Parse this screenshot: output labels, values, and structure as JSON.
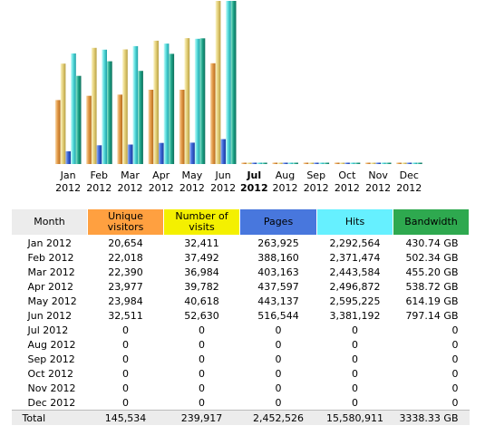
{
  "colors": {
    "unique_visitors": "#e8a254",
    "visits": "#e6d27c",
    "pages": "#3b66d8",
    "hits": "#56dcdc",
    "bandwidth": "#1fa58a"
  },
  "chart_data": {
    "type": "bar",
    "categories": [
      "Jan 2012",
      "Feb 2012",
      "Mar 2012",
      "Apr 2012",
      "May 2012",
      "Jun 2012",
      "Jul 2012",
      "Aug 2012",
      "Sep 2012",
      "Oct 2012",
      "Nov 2012",
      "Dec 2012"
    ],
    "current_month": "Jul 2012",
    "series": [
      {
        "name": "Unique visitors",
        "values": [
          20654,
          22018,
          22390,
          23977,
          23984,
          32511,
          0,
          0,
          0,
          0,
          0,
          0
        ]
      },
      {
        "name": "Number of visits",
        "values": [
          32411,
          37492,
          36984,
          39782,
          40618,
          52630,
          0,
          0,
          0,
          0,
          0,
          0
        ]
      },
      {
        "name": "Pages",
        "values": [
          263925,
          388160,
          403163,
          437597,
          443137,
          516544,
          0,
          0,
          0,
          0,
          0,
          0
        ]
      },
      {
        "name": "Hits",
        "values": [
          2292564,
          2371474,
          2443584,
          2496872,
          2595225,
          3381192,
          0,
          0,
          0,
          0,
          0,
          0
        ]
      },
      {
        "name": "Bandwidth",
        "values": [
          430.74,
          502.34,
          455.2,
          538.72,
          614.19,
          797.14,
          0,
          0,
          0,
          0,
          0,
          0
        ]
      }
    ],
    "scale_groups": [
      {
        "series": [
          "Unique visitors",
          "Number of visits"
        ],
        "max": 52630
      },
      {
        "series": [
          "Pages",
          "Hits"
        ],
        "max": 3381192
      },
      {
        "series": [
          "Bandwidth"
        ],
        "max": 797.14
      }
    ],
    "legend": "none",
    "grid": false
  },
  "month_labels": [
    {
      "m": "Jan",
      "y": "2012"
    },
    {
      "m": "Feb",
      "y": "2012"
    },
    {
      "m": "Mar",
      "y": "2012"
    },
    {
      "m": "Apr",
      "y": "2012"
    },
    {
      "m": "May",
      "y": "2012"
    },
    {
      "m": "Jun",
      "y": "2012"
    },
    {
      "m": "Jul",
      "y": "2012"
    },
    {
      "m": "Aug",
      "y": "2012"
    },
    {
      "m": "Sep",
      "y": "2012"
    },
    {
      "m": "Oct",
      "y": "2012"
    },
    {
      "m": "Nov",
      "y": "2012"
    },
    {
      "m": "Dec",
      "y": "2012"
    }
  ],
  "table": {
    "headers": {
      "month": "Month",
      "unique": "Unique visitors",
      "visits": "Number of visits",
      "pages": "Pages",
      "hits": "Hits",
      "bandwidth": "Bandwidth"
    },
    "rows": [
      [
        "Jan 2012",
        "20,654",
        "32,411",
        "263,925",
        "2,292,564",
        "430.74 GB"
      ],
      [
        "Feb 2012",
        "22,018",
        "37,492",
        "388,160",
        "2,371,474",
        "502.34 GB"
      ],
      [
        "Mar 2012",
        "22,390",
        "36,984",
        "403,163",
        "2,443,584",
        "455.20 GB"
      ],
      [
        "Apr 2012",
        "23,977",
        "39,782",
        "437,597",
        "2,496,872",
        "538.72 GB"
      ],
      [
        "May 2012",
        "23,984",
        "40,618",
        "443,137",
        "2,595,225",
        "614.19 GB"
      ],
      [
        "Jun 2012",
        "32,511",
        "52,630",
        "516,544",
        "3,381,192",
        "797.14 GB"
      ],
      [
        "Jul 2012",
        "0",
        "0",
        "0",
        "0",
        "0"
      ],
      [
        "Aug 2012",
        "0",
        "0",
        "0",
        "0",
        "0"
      ],
      [
        "Sep 2012",
        "0",
        "0",
        "0",
        "0",
        "0"
      ],
      [
        "Oct 2012",
        "0",
        "0",
        "0",
        "0",
        "0"
      ],
      [
        "Nov 2012",
        "0",
        "0",
        "0",
        "0",
        "0"
      ],
      [
        "Dec 2012",
        "0",
        "0",
        "0",
        "0",
        "0"
      ]
    ],
    "total": [
      "Total",
      "145,534",
      "239,917",
      "2,452,526",
      "15,580,911",
      "3338.33 GB"
    ]
  }
}
